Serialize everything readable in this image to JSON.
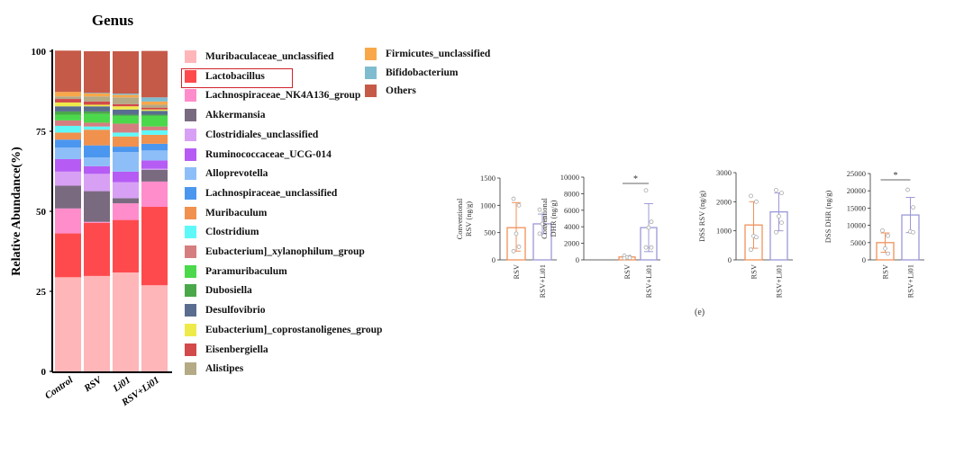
{
  "caption": "(e)",
  "chart_data": [
    {
      "type": "stacked-bar",
      "title": "Genus",
      "ylabel": "Relative Abundance(%)",
      "xlabel": "",
      "ylim": [
        0,
        100
      ],
      "yticks": [
        "0",
        "25",
        "50",
        "75",
        "100"
      ],
      "categories": [
        "Control",
        "RSV",
        "Li01",
        "RSV+Li01"
      ],
      "highlighted_legend_entry": "Lactobacillus",
      "series": [
        {
          "name": "Muribaculaceae_unclassified",
          "color": "#ffb6b9",
          "values": [
            29.4,
            29.8,
            30.9,
            26.9
          ]
        },
        {
          "name": "Lactobacillus",
          "color": "#ff4a4d",
          "values": [
            13.7,
            16.6,
            16.4,
            24.5
          ]
        },
        {
          "name": "Lachnospiraceae_NK4A136_group",
          "color": "#ff8ccb",
          "values": [
            7.8,
            0.3,
            5.2,
            7.9
          ]
        },
        {
          "name": "Akkermansia",
          "color": "#7a6a80",
          "values": [
            7.1,
            9.6,
            1.6,
            3.7
          ]
        },
        {
          "name": "Clostridiales_unclassified",
          "color": "#d8a0f4",
          "values": [
            4.4,
            5.4,
            5.0,
            0.3
          ]
        },
        {
          "name": "Ruminococcaceae_UCG-014",
          "color": "#b65cf5",
          "values": [
            3.9,
            2.4,
            3.3,
            2.6
          ]
        },
        {
          "name": "Alloprevotella",
          "color": "#8dbef8",
          "values": [
            3.6,
            2.7,
            6.1,
            3.1
          ]
        },
        {
          "name": "Lachnospiraceae_unclassified",
          "color": "#4b97ef",
          "values": [
            2.5,
            3.8,
            1.7,
            2.1
          ]
        },
        {
          "name": "Muribaculum",
          "color": "#f0914e",
          "values": [
            2.2,
            4.9,
            3.2,
            2.8
          ]
        },
        {
          "name": "Clostridium",
          "color": "#5ff8f8",
          "values": [
            2.1,
            1.0,
            1.2,
            1.4
          ]
        },
        {
          "name": "Eubacterium]_xylanophilum_group",
          "color": "#d57e80",
          "values": [
            1.7,
            1.2,
            2.8,
            1.2
          ]
        },
        {
          "name": "Paramuribaculum",
          "color": "#4bd94b",
          "values": [
            1.8,
            2.7,
            2.4,
            3.3
          ]
        },
        {
          "name": "Dubosiella",
          "color": "#4aa84a",
          "values": [
            1.0,
            0.8,
            0.4,
            0.4
          ]
        },
        {
          "name": "Desulfovibrio",
          "color": "#5a6d8f",
          "values": [
            1.6,
            1.6,
            1.6,
            1.2
          ]
        },
        {
          "name": "Eubacterium]_coprostanoligenes_group",
          "color": "#eeea4a",
          "values": [
            1.2,
            0.5,
            1.0,
            0.4
          ]
        },
        {
          "name": "Eisenbergiella",
          "color": "#d24a4a",
          "values": [
            1.1,
            1.0,
            0.7,
            0.6
          ]
        },
        {
          "name": "Alistipes",
          "color": "#b4aa85",
          "values": [
            0.8,
            1.6,
            2.1,
            0.9
          ]
        },
        {
          "name": "Firmicutes_unclassified",
          "color": "#f8a84a",
          "values": [
            1.4,
            0.9,
            0.8,
            1.0
          ]
        },
        {
          "name": "Bifidobacterium",
          "color": "#7fbccf",
          "values": [
            0.0,
            0.2,
            0.4,
            1.3
          ]
        },
        {
          "name": "Others",
          "color": "#c65a48",
          "values": [
            12.9,
            13.0,
            13.2,
            14.5
          ]
        }
      ]
    },
    {
      "type": "bar",
      "ylabel": [
        "Conventional",
        "RSV (ng/g)"
      ],
      "ylim": [
        0,
        1500
      ],
      "yticks": [
        "0",
        "500",
        "1000",
        "1500"
      ],
      "categories": [
        "RSV",
        "RSV+Li01"
      ],
      "values": [
        590,
        660
      ],
      "error_upper": [
        1050,
        840
      ],
      "error_lower": [
        160,
        480
      ],
      "points": [
        [
          1120,
          1000,
          480,
          240,
          160
        ],
        [
          920,
          760,
          660,
          620,
          480
        ]
      ],
      "significance": ""
    },
    {
      "type": "bar",
      "ylabel": [
        "Conventional",
        "DHR (ng/g)"
      ],
      "ylim": [
        0,
        10000
      ],
      "yticks": [
        "0",
        "2000",
        "4000",
        "6000",
        "8000",
        "10000"
      ],
      "categories": [
        "RSV",
        "RSV+Li01"
      ],
      "values": [
        350,
        3900
      ],
      "error_upper": [
        450,
        6800
      ],
      "error_lower": [
        200,
        1000
      ],
      "points": [
        [
          500,
          350,
          300,
          250,
          200
        ],
        [
          8400,
          4600,
          3900,
          1500,
          1500
        ]
      ],
      "significance": "*"
    },
    {
      "type": "bar",
      "ylabel": [
        "DSS RSV (ng/g)"
      ],
      "ylim": [
        0,
        3000
      ],
      "yticks": [
        "0",
        "1000",
        "2000",
        "3000"
      ],
      "categories": [
        "RSV",
        "RSV+Li01"
      ],
      "values": [
        1200,
        1650
      ],
      "error_upper": [
        2000,
        2300
      ],
      "error_lower": [
        400,
        1000
      ],
      "points": [
        [
          2200,
          2000,
          820,
          780,
          350
        ],
        [
          2400,
          2300,
          1500,
          1280,
          950
        ]
      ],
      "significance": ""
    },
    {
      "type": "bar",
      "ylabel": [
        "DSS DHR (ng/g)"
      ],
      "ylim": [
        0,
        25000
      ],
      "yticks": [
        "0",
        "5000",
        "10000",
        "15000",
        "20000",
        "25000"
      ],
      "categories": [
        "RSV",
        "RSV+Li01"
      ],
      "values": [
        5000,
        13000
      ],
      "error_upper": [
        7800,
        18100
      ],
      "error_lower": [
        2200,
        7900
      ],
      "points": [
        [
          8500,
          7000,
          3300,
          1800
        ],
        [
          20300,
          15200,
          8200,
          8000
        ]
      ],
      "significance": "*"
    }
  ],
  "colors": {
    "group1": "#f0915a",
    "group2": "#9b98d8"
  }
}
